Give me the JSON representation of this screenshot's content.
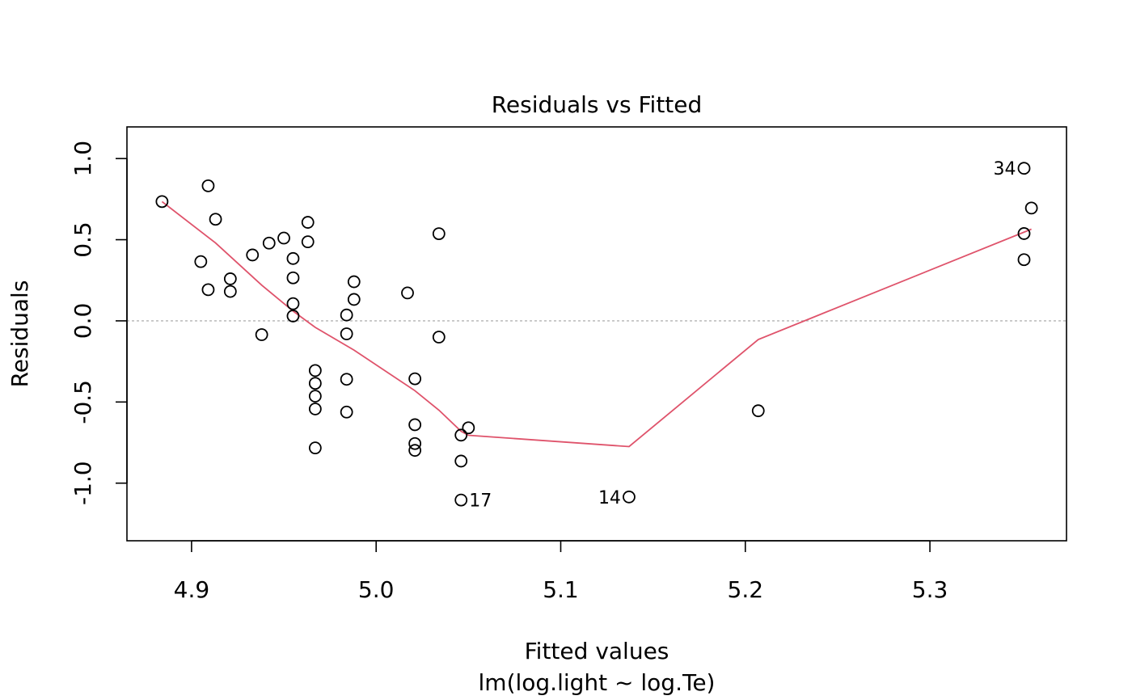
{
  "chart_data": {
    "type": "scatter",
    "title": "Residuals vs Fitted",
    "xlabel": "Fitted values",
    "subtitle": "lm(log.light ~ log.Te)",
    "ylabel": "Residuals",
    "xlim": [
      4.865,
      5.374
    ],
    "ylim": [
      -1.355,
      1.195
    ],
    "xticks": [
      4.9,
      5.0,
      5.1,
      5.2,
      5.3
    ],
    "xtick_labels": [
      "4.9",
      "5.0",
      "5.1",
      "5.2",
      "5.3"
    ],
    "yticks": [
      -1.0,
      -0.5,
      0.0,
      0.5,
      1.0
    ],
    "ytick_labels": [
      "-1.0",
      "-0.5",
      "0.0",
      "0.5",
      "1.0"
    ],
    "reference_line": {
      "y": 0.0,
      "style": "dotted",
      "color": "#b3b3b3"
    },
    "points": [
      {
        "x": 4.884,
        "y": 0.735
      },
      {
        "x": 4.905,
        "y": 0.365
      },
      {
        "x": 4.909,
        "y": 0.832
      },
      {
        "x": 4.909,
        "y": 0.192
      },
      {
        "x": 4.913,
        "y": 0.626
      },
      {
        "x": 4.921,
        "y": 0.259
      },
      {
        "x": 4.921,
        "y": 0.181
      },
      {
        "x": 4.933,
        "y": 0.406
      },
      {
        "x": 4.938,
        "y": -0.085
      },
      {
        "x": 4.942,
        "y": 0.479
      },
      {
        "x": 4.95,
        "y": 0.51
      },
      {
        "x": 4.955,
        "y": 0.384
      },
      {
        "x": 4.955,
        "y": 0.265
      },
      {
        "x": 4.955,
        "y": 0.106
      },
      {
        "x": 4.955,
        "y": 0.03
      },
      {
        "x": 4.963,
        "y": 0.607
      },
      {
        "x": 4.963,
        "y": 0.487
      },
      {
        "x": 4.967,
        "y": -0.306
      },
      {
        "x": 4.967,
        "y": -0.385
      },
      {
        "x": 4.967,
        "y": -0.464
      },
      {
        "x": 4.967,
        "y": -0.543
      },
      {
        "x": 4.967,
        "y": -0.783
      },
      {
        "x": 4.984,
        "y": 0.036
      },
      {
        "x": 4.984,
        "y": -0.08
      },
      {
        "x": 4.984,
        "y": -0.36
      },
      {
        "x": 4.984,
        "y": -0.562
      },
      {
        "x": 4.988,
        "y": 0.241
      },
      {
        "x": 4.988,
        "y": 0.132
      },
      {
        "x": 5.017,
        "y": 0.172
      },
      {
        "x": 5.021,
        "y": -0.357
      },
      {
        "x": 5.021,
        "y": -0.64
      },
      {
        "x": 5.021,
        "y": -0.756
      },
      {
        "x": 5.021,
        "y": -0.798
      },
      {
        "x": 5.034,
        "y": 0.537
      },
      {
        "x": 5.034,
        "y": -0.1
      },
      {
        "x": 5.046,
        "y": -0.704
      },
      {
        "x": 5.046,
        "y": -0.864
      },
      {
        "x": 5.046,
        "y": -1.104
      },
      {
        "x": 5.05,
        "y": -0.659
      },
      {
        "x": 5.137,
        "y": -1.085
      },
      {
        "x": 5.207,
        "y": -0.554
      },
      {
        "x": 5.351,
        "y": 0.94
      },
      {
        "x": 5.351,
        "y": 0.538
      },
      {
        "x": 5.351,
        "y": 0.377
      },
      {
        "x": 5.355,
        "y": 0.695
      }
    ],
    "point_labels": [
      {
        "text": "34",
        "x": 5.351,
        "y": 0.94,
        "side": "left"
      },
      {
        "text": "17",
        "x": 5.046,
        "y": -1.104,
        "side": "right"
      },
      {
        "text": "14",
        "x": 5.137,
        "y": -1.085,
        "side": "left"
      }
    ],
    "smooth_line": {
      "color": "#df536b",
      "x": [
        4.884,
        4.913,
        4.938,
        4.955,
        4.967,
        4.988,
        5.021,
        5.034,
        5.046,
        5.05,
        5.137,
        5.207,
        5.355
      ],
      "y": [
        0.735,
        0.48,
        0.22,
        0.06,
        -0.04,
        -0.18,
        -0.43,
        -0.55,
        -0.68,
        -0.705,
        -0.775,
        -0.115,
        0.565
      ]
    }
  }
}
